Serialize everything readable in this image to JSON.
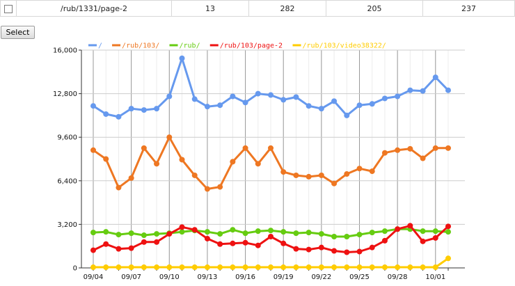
{
  "row": {
    "path": "/rub/1331/page-2",
    "values": [
      "13",
      "282",
      "205",
      "237"
    ]
  },
  "select_label": "Select",
  "chart_data": {
    "type": "line",
    "title": "",
    "xlabel": "",
    "ylabel": "",
    "ylim": [
      0,
      16000
    ],
    "yticks": [
      0,
      3200,
      6400,
      9600,
      12800,
      16000
    ],
    "ytick_labels": [
      "0",
      "3,200",
      "6,400",
      "9,600",
      "12,800",
      "16,000"
    ],
    "x_tick_labels": [
      "09/04",
      "09/07",
      "09/10",
      "09/13",
      "09/16",
      "09/19",
      "09/22",
      "09/25",
      "09/28",
      "10/01"
    ],
    "x_tick_indices": [
      0,
      3,
      6,
      9,
      12,
      15,
      18,
      21,
      24,
      27
    ],
    "n_points": 29,
    "legend_position": "top-left",
    "grid": true,
    "series": [
      {
        "name": "/",
        "color": "#6699ee",
        "values": [
          11900,
          11300,
          11100,
          11700,
          11600,
          11700,
          12600,
          15400,
          12400,
          11850,
          11950,
          12600,
          12150,
          12800,
          12700,
          12350,
          12550,
          11900,
          11700,
          12250,
          11200,
          11950,
          12050,
          12450,
          12600,
          13050,
          13000,
          14000,
          13050
        ]
      },
      {
        "name": "/rub/103/",
        "color": "#ee7722",
        "values": [
          8650,
          8000,
          5900,
          6600,
          8800,
          7650,
          9600,
          7950,
          6800,
          5800,
          5950,
          7800,
          8800,
          7650,
          8800,
          7050,
          6800,
          6700,
          6800,
          6200,
          6900,
          7300,
          7100,
          8450,
          8650,
          8750,
          8050,
          8800,
          8800
        ]
      },
      {
        "name": "/rub/",
        "color": "#66cc11",
        "values": [
          2600,
          2650,
          2450,
          2550,
          2400,
          2500,
          2550,
          2650,
          2750,
          2650,
          2500,
          2800,
          2550,
          2700,
          2750,
          2650,
          2550,
          2600,
          2500,
          2300,
          2300,
          2450,
          2600,
          2700,
          2850,
          2850,
          2700,
          2700,
          2650
        ]
      },
      {
        "name": "/rub/103/page-2",
        "color": "#ee1111",
        "values": [
          1300,
          1750,
          1400,
          1450,
          1900,
          1900,
          2500,
          3000,
          2800,
          2150,
          1750,
          1800,
          1850,
          1650,
          2300,
          1800,
          1400,
          1350,
          1500,
          1250,
          1150,
          1200,
          1500,
          2000,
          2850,
          3100,
          1950,
          2200,
          3050
        ]
      },
      {
        "name": "/rub/103/video38322/",
        "color": "#ffcc00",
        "values": [
          50,
          50,
          50,
          50,
          50,
          50,
          50,
          50,
          50,
          50,
          50,
          50,
          50,
          50,
          50,
          50,
          50,
          50,
          50,
          50,
          50,
          50,
          50,
          50,
          50,
          50,
          50,
          50,
          700
        ]
      }
    ]
  }
}
